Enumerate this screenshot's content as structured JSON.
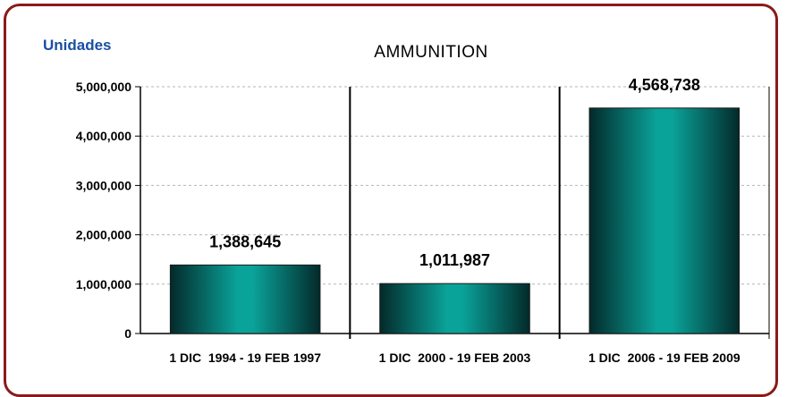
{
  "chart_data": {
    "type": "bar",
    "title": "AMMUNITION",
    "ylabel": "Unidades",
    "xlabel": "",
    "categories": [
      "1 DIC  1994 - 19 FEB 1997",
      "1 DIC  2000 - 19 FEB 2003",
      "1 DIC  2006 - 19 FEB 2009"
    ],
    "values": [
      1388645,
      1011987,
      4568738
    ],
    "value_labels": [
      "1,388,645",
      "1,011,987",
      "4,568,738"
    ],
    "ylim": [
      0,
      5000000
    ],
    "yticks": [
      0,
      1000000,
      2000000,
      3000000,
      4000000,
      5000000
    ],
    "ytick_labels": [
      "0",
      "1,000,000",
      "2,000,000",
      "3,000,000",
      "4,000,000",
      "5,000,000"
    ],
    "grid": true,
    "legend": "none",
    "colors": {
      "bar_center": "#0aa39a",
      "bar_edge": "#032a2a",
      "frame_border": "#8b1a1a",
      "units_label": "#1a4fa3"
    }
  }
}
